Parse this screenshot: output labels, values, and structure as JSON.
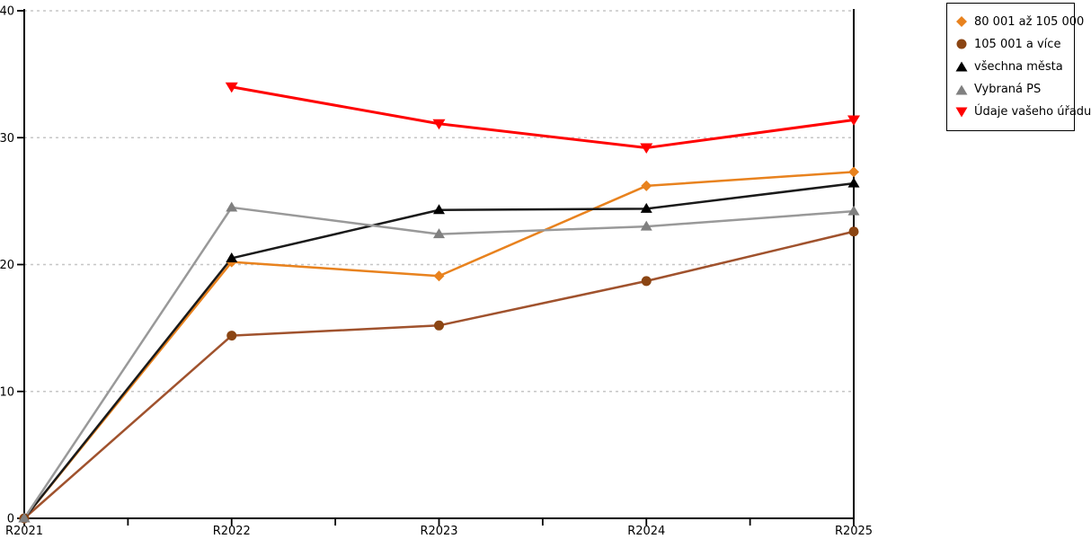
{
  "chart_data": {
    "type": "line",
    "title": "",
    "xlabel": "",
    "ylabel": "",
    "x": [
      "R2021",
      "R2022",
      "R2023",
      "R2024",
      "R2025"
    ],
    "ylim": [
      0,
      40
    ],
    "yticks": [
      0,
      10,
      20,
      30,
      40
    ],
    "grid": "horizontal dashed gridlines at y ticks",
    "legend_position": "top-right",
    "colors": {
      "grid": "#c6c6c6",
      "axis": "#000000"
    },
    "series": [
      {
        "name": "80 001 až 105 000",
        "marker": "diamond",
        "color": "#E8821E",
        "line_color": "#E8821E",
        "values": [
          0,
          20.2,
          19.1,
          26.2,
          27.3
        ]
      },
      {
        "name": "105 001 a více",
        "marker": "circle",
        "color": "#8B4513",
        "line_color": "#A0522D",
        "values": [
          0,
          14.4,
          15.2,
          18.7,
          22.6
        ]
      },
      {
        "name": "všechna města",
        "marker": "triangle-up",
        "color": "#000000",
        "line_color": "#1a1a1a",
        "values": [
          0,
          20.5,
          24.3,
          24.4,
          26.4
        ]
      },
      {
        "name": "Vybraná PS",
        "marker": "triangle-up",
        "color": "#808080",
        "line_color": "#999999",
        "values": [
          0,
          24.5,
          22.4,
          23.0,
          24.2
        ]
      },
      {
        "name": "Údaje vašeho úřadu",
        "marker": "triangle-down",
        "color": "#FF0000",
        "line_color": "#FF0000",
        "values": [
          null,
          34.0,
          31.1,
          29.2,
          31.4
        ]
      }
    ]
  }
}
